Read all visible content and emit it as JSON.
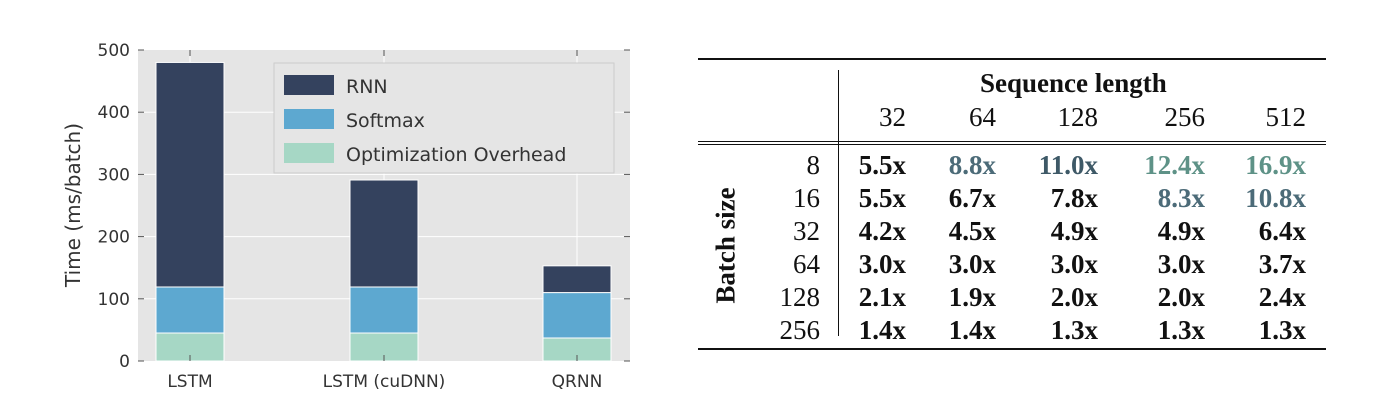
{
  "chart_data": [
    {
      "type": "bar",
      "stacked": true,
      "categories": [
        "LSTM",
        "LSTM (cuDNN)",
        "QRNN"
      ],
      "series": [
        {
          "name": "Optimization Overhead",
          "color": "#a6d7c5",
          "values": [
            45,
            45,
            37
          ]
        },
        {
          "name": "Softmax",
          "color": "#5da8d0",
          "values": [
            74,
            74,
            73
          ]
        },
        {
          "name": "RNN",
          "color": "#34425e",
          "values": [
            361,
            172,
            43
          ]
        }
      ],
      "title": "",
      "xlabel": "",
      "ylabel": "Time (ms/batch)",
      "ylim": [
        0,
        500
      ],
      "yticks": [
        "0",
        "100",
        "200",
        "300",
        "400",
        "500"
      ],
      "legend": "top-right",
      "grid": true,
      "background": "#e5e5e5"
    },
    {
      "type": "table",
      "column_header": "Sequence length",
      "row_header": "Batch size",
      "columns": [
        "32",
        "64",
        "128",
        "256",
        "512"
      ],
      "rows": [
        {
          "label": "8",
          "cells": [
            "5.5x",
            "8.8x",
            "11.0x",
            "12.4x",
            "16.9x"
          ],
          "colors": [
            "#111111",
            "#4c6b78",
            "#3e5967",
            "#5e9287",
            "#5e9287"
          ]
        },
        {
          "label": "16",
          "cells": [
            "5.5x",
            "6.7x",
            "7.8x",
            "8.3x",
            "10.8x"
          ],
          "colors": [
            "#111111",
            "#111111",
            "#111111",
            "#4c6b78",
            "#4c6b78"
          ]
        },
        {
          "label": "32",
          "cells": [
            "4.2x",
            "4.5x",
            "4.9x",
            "4.9x",
            "6.4x"
          ],
          "colors": [
            "#111111",
            "#111111",
            "#111111",
            "#111111",
            "#111111"
          ]
        },
        {
          "label": "64",
          "cells": [
            "3.0x",
            "3.0x",
            "3.0x",
            "3.0x",
            "3.7x"
          ],
          "colors": [
            "#111111",
            "#111111",
            "#111111",
            "#111111",
            "#111111"
          ]
        },
        {
          "label": "128",
          "cells": [
            "2.1x",
            "1.9x",
            "2.0x",
            "2.0x",
            "2.4x"
          ],
          "colors": [
            "#111111",
            "#111111",
            "#111111",
            "#111111",
            "#111111"
          ]
        },
        {
          "label": "256",
          "cells": [
            "1.4x",
            "1.4x",
            "1.3x",
            "1.3x",
            "1.3x"
          ],
          "colors": [
            "#111111",
            "#111111",
            "#111111",
            "#111111",
            "#111111"
          ]
        }
      ]
    }
  ]
}
